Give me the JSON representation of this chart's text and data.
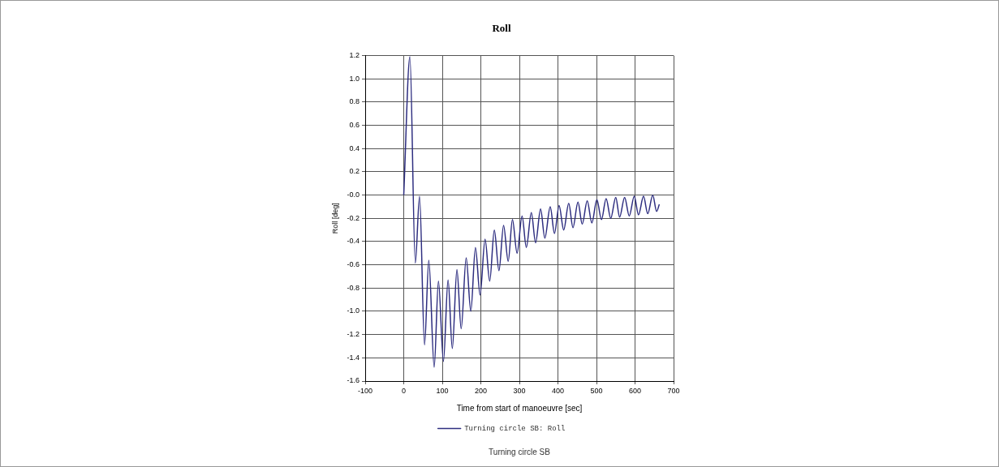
{
  "chart_data": {
    "type": "line",
    "title": "Roll",
    "xlabel": "Time from start of manoeuvre [sec]",
    "ylabel": "Roll [deg]",
    "series": [
      {
        "name": "Turning circle SB: Roll",
        "color": "#2e2e80",
        "x": [
          0,
          16,
          30,
          41,
          54,
          65,
          79,
          90,
          103,
          115,
          126,
          138,
          149,
          162,
          174,
          186,
          198,
          211,
          223,
          235,
          247,
          259,
          271,
          282,
          294,
          307,
          318,
          331,
          342,
          355,
          366,
          380,
          391,
          403,
          415,
          428,
          439,
          452,
          463,
          476,
          488,
          501,
          513,
          525,
          537,
          550,
          560,
          573,
          585,
          598,
          609,
          622,
          633,
          646,
          656,
          663
        ],
        "values": [
          0,
          1.19,
          -0.585,
          -0.01,
          -1.29,
          -0.56,
          -1.48,
          -0.74,
          -1.43,
          -0.73,
          -1.32,
          -0.64,
          -1.15,
          -0.54,
          -1.0,
          -0.45,
          -0.86,
          -0.38,
          -0.74,
          -0.3,
          -0.65,
          -0.26,
          -0.57,
          -0.21,
          -0.5,
          -0.18,
          -0.45,
          -0.15,
          -0.41,
          -0.12,
          -0.37,
          -0.1,
          -0.33,
          -0.09,
          -0.3,
          -0.07,
          -0.28,
          -0.06,
          -0.25,
          -0.05,
          -0.24,
          -0.04,
          -0.21,
          -0.03,
          -0.2,
          -0.02,
          -0.19,
          -0.02,
          -0.18,
          -0.01,
          -0.17,
          -0.01,
          -0.16,
          0,
          -0.14,
          -0.08
        ]
      }
    ],
    "xlim": [
      -100,
      700
    ],
    "xticks": [
      -100,
      0,
      100,
      200,
      300,
      400,
      500,
      600,
      700
    ],
    "ylim": [
      -1.6,
      1.2
    ],
    "yticks": [
      {
        "value": -1.6,
        "label": "-1.6"
      },
      {
        "value": -1.4,
        "label": "-1.4"
      },
      {
        "value": -1.2,
        "label": "-1.2"
      },
      {
        "value": -1,
        "label": "-1.0"
      },
      {
        "value": -0.8,
        "label": "-0.8"
      },
      {
        "value": -0.6,
        "label": "-0.6"
      },
      {
        "value": -0.4,
        "label": "-0.4"
      },
      {
        "value": -0.2,
        "label": "-0.2"
      },
      {
        "value": 0,
        "label": "-0.0"
      },
      {
        "value": 0.2,
        "label": "0.2"
      },
      {
        "value": 0.4,
        "label": "0.4"
      },
      {
        "value": 0.6,
        "label": "0.6"
      },
      {
        "value": 0.8,
        "label": "0.8"
      },
      {
        "value": 1,
        "label": "1.0"
      },
      {
        "value": 1.2,
        "label": "1.2"
      }
    ],
    "grid": true,
    "legend": "bottom",
    "marker": "none",
    "line_style": "solid",
    "annotations": [
      "Turning circle SB"
    ]
  }
}
